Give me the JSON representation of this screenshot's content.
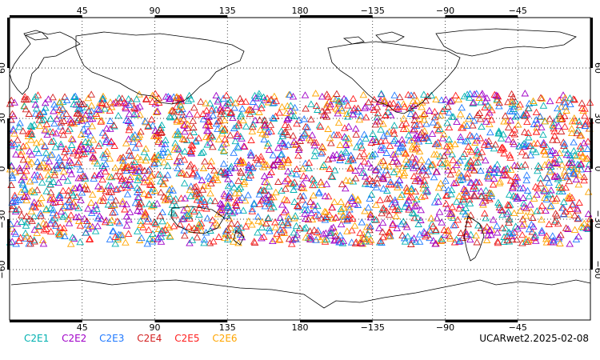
{
  "map": {
    "projection": "cylindrical-equidistant",
    "lon_range": [
      0,
      360
    ],
    "lat_range": [
      -90,
      90
    ],
    "grid": "dotted",
    "lon_ticks": [
      {
        "lon": 45,
        "label": "45"
      },
      {
        "lon": 90,
        "label": "90"
      },
      {
        "lon": 135,
        "label": "135"
      },
      {
        "lon": 180,
        "label": "180"
      },
      {
        "lon": 225,
        "label": "−135"
      },
      {
        "lon": 270,
        "label": "−90"
      },
      {
        "lon": 315,
        "label": "−45"
      }
    ],
    "lat_ticks": [
      {
        "lat": 60,
        "label": "60"
      },
      {
        "lat": 30,
        "label": "30"
      },
      {
        "lat": 0,
        "label": "0"
      },
      {
        "lat": -30,
        "label": "−30"
      },
      {
        "lat": -60,
        "label": "−60"
      }
    ],
    "marker": "triangle-open",
    "observation_lat_band": [
      -45,
      45
    ],
    "observation_marker_count": 2600
  },
  "series": [
    {
      "name": "C2E1",
      "color": "#00b0b0"
    },
    {
      "name": "C2E2",
      "color": "#a000c8"
    },
    {
      "name": "C2E3",
      "color": "#1e78ff"
    },
    {
      "name": "C2E4",
      "color": "#d22020"
    },
    {
      "name": "C2E5",
      "color": "#ff1e1e"
    },
    {
      "name": "C2E6",
      "color": "#ffa500"
    }
  ],
  "caption": "UCARwet2.2025-02-08"
}
